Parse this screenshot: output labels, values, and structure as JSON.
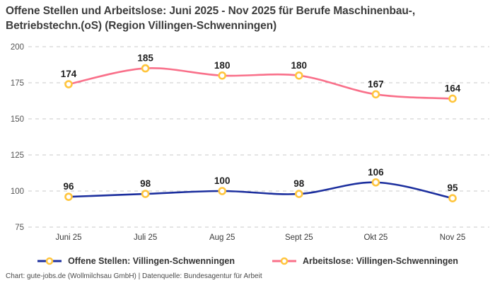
{
  "header": {
    "title": "Offene Stellen und Arbeitslose: Juni 2025 - Nov 2025 für Berufe Maschinenbau-, Betriebstechn.(oS) (Region Villingen-Schwenningen)"
  },
  "legend": {
    "items": [
      {
        "label": "Offene Stellen: Villingen-Schwenningen",
        "color": "#1c2f9e"
      },
      {
        "label": "Arbeitslose: Villingen-Schwenningen",
        "color": "#f9708a"
      }
    ]
  },
  "footer": {
    "text": "Chart: gute-jobs.de (Wollmilchsau GmbH) | Datenquelle: Bundesagentur für Arbeit"
  },
  "colors": {
    "offene_stellen_line": "#1c2f9e",
    "arbeitslose_line": "#f9708a",
    "marker_stroke": "#ffc53d",
    "marker_fill": "#ffffff",
    "gridline": "#c9c9c9",
    "ytick_text": "#555555",
    "xtick_text": "#3a3a3a",
    "data_label_text": "#1f1f1f"
  },
  "chart_data": {
    "type": "line",
    "title": "Offene Stellen und Arbeitslose: Juni 2025 - Nov 2025 für Berufe Maschinenbau-, Betriebstechn.(oS) (Region Villingen-Schwenningen)",
    "categories": [
      "Juni 25",
      "Juli 25",
      "Aug 25",
      "Sept 25",
      "Okt 25",
      "Nov 25"
    ],
    "series": [
      {
        "name": "Offene Stellen: Villingen-Schwenningen",
        "color": "#1c2f9e",
        "values": [
          96,
          98,
          100,
          98,
          106,
          95
        ]
      },
      {
        "name": "Arbeitslose: Villingen-Schwenningen",
        "color": "#f9708a",
        "values": [
          174,
          185,
          180,
          180,
          167,
          164
        ]
      }
    ],
    "xlabel": "",
    "ylabel": "",
    "ylim": [
      75,
      200
    ],
    "yticks": [
      75,
      100,
      125,
      150,
      175,
      200
    ],
    "grid": "horizontal-dashed",
    "line_style": "smooth",
    "markers": {
      "shape": "circle",
      "stroke": "#ffc53d",
      "fill": "#ffffff"
    },
    "data_labels": "above-points",
    "legend_position": "bottom"
  }
}
